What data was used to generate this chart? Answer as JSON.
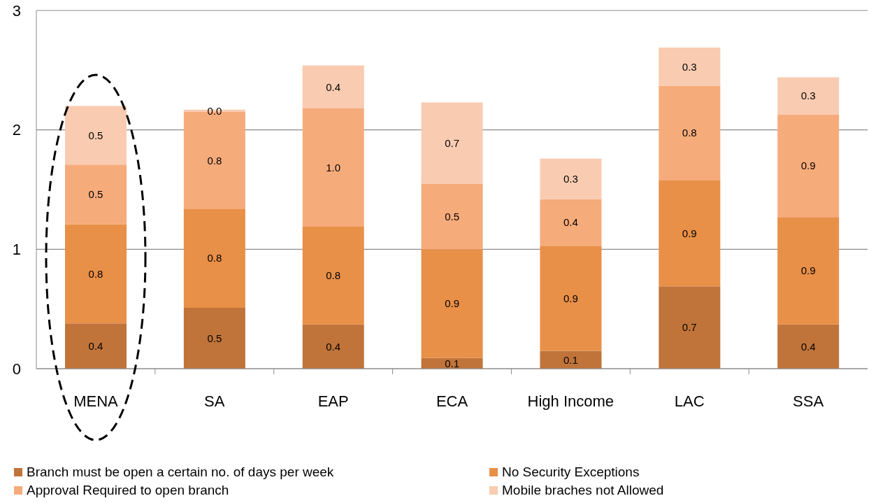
{
  "chart_data": {
    "type": "bar",
    "stacked": true,
    "categories": [
      "MENA",
      "SA",
      "EAP",
      "ECA",
      "High Income",
      "LAC",
      "SSA"
    ],
    "series": [
      {
        "name": "Branch must be open a certain no. of days per week",
        "color": "#c0743a",
        "values": [
          0.38,
          0.51,
          0.37,
          0.09,
          0.15,
          0.69,
          0.37
        ],
        "value_labels": [
          "0.4",
          "0.5",
          "0.4",
          "0.1",
          "0.1",
          "0.7",
          "0.4"
        ]
      },
      {
        "name": "No Security Exceptions",
        "color": "#e88f48",
        "values": [
          0.83,
          0.83,
          0.82,
          0.91,
          0.88,
          0.89,
          0.9
        ],
        "value_labels": [
          "0.8",
          "0.8",
          "0.8",
          "0.9",
          "0.9",
          "0.9",
          "0.9"
        ]
      },
      {
        "name": "Approval Required to open branch",
        "color": "#f6ab7b",
        "values": [
          0.5,
          0.81,
          0.99,
          0.55,
          0.39,
          0.79,
          0.86
        ],
        "value_labels": [
          "0.5",
          "0.8",
          "1.0",
          "0.5",
          "0.4",
          "0.8",
          "0.9"
        ]
      },
      {
        "name": "Mobile braches not Allowed",
        "color": "#f9cbb1",
        "values": [
          0.49,
          0.02,
          0.36,
          0.68,
          0.34,
          0.32,
          0.31
        ],
        "value_labels": [
          "0.5",
          "0.0",
          "0.4",
          "0.7",
          "0.3",
          "0.3",
          "0.3"
        ]
      }
    ],
    "ylim": [
      0,
      3
    ],
    "yticks": [
      0,
      1,
      2,
      3
    ],
    "grid": "y",
    "legend": "bottom"
  }
}
